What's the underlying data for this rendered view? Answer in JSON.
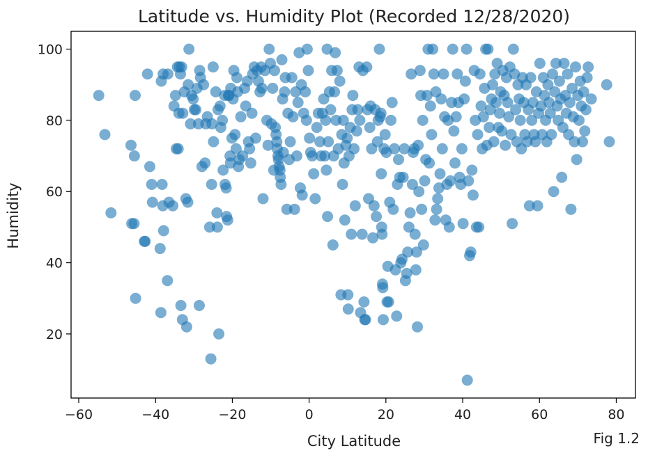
{
  "chart_data": {
    "type": "scatter",
    "title": "Latitude vs. Humidity Plot (Recorded 12/28/2020)",
    "xlabel": "City Latitude",
    "ylabel": "Humidity",
    "xlim": [
      -62,
      85
    ],
    "ylim": [
      2,
      105
    ],
    "xticks": [
      -60,
      -40,
      -20,
      0,
      20,
      40,
      60,
      80
    ],
    "yticks": [
      20,
      40,
      60,
      80,
      100
    ],
    "grid": false,
    "color": "#1f77b4",
    "annotation": "Fig 1.2",
    "points": [
      [
        -54.8,
        87
      ],
      [
        -53.2,
        76
      ],
      [
        -51.6,
        54
      ],
      [
        -46.4,
        73
      ],
      [
        -46.2,
        51
      ],
      [
        -45.6,
        51
      ],
      [
        -45.5,
        70
      ],
      [
        -45.3,
        87
      ],
      [
        -45.2,
        30
      ],
      [
        -42.9,
        46
      ],
      [
        -42.7,
        46
      ],
      [
        -42.1,
        93
      ],
      [
        -41.5,
        67
      ],
      [
        -41.0,
        62
      ],
      [
        -40.8,
        57
      ],
      [
        -38.8,
        44
      ],
      [
        -38.6,
        26
      ],
      [
        -38.5,
        91
      ],
      [
        -38.3,
        62
      ],
      [
        -38.1,
        56
      ],
      [
        -38.0,
        93
      ],
      [
        -37.9,
        49
      ],
      [
        -36.9,
        35
      ],
      [
        -36.8,
        93
      ],
      [
        -36.5,
        57
      ],
      [
        -35.5,
        56
      ],
      [
        -35.2,
        84
      ],
      [
        -34.8,
        87
      ],
      [
        -34.6,
        72
      ],
      [
        -34.3,
        95
      ],
      [
        -34.1,
        72
      ],
      [
        -33.9,
        82
      ],
      [
        -33.8,
        95
      ],
      [
        -33.5,
        93
      ],
      [
        -33.4,
        28
      ],
      [
        -33.2,
        95
      ],
      [
        -33.0,
        24
      ],
      [
        -32.9,
        82
      ],
      [
        -32.5,
        88
      ],
      [
        -32.1,
        58
      ],
      [
        -31.9,
        22
      ],
      [
        -31.6,
        57
      ],
      [
        -31.5,
        90
      ],
      [
        -31.3,
        100
      ],
      [
        -30.9,
        79
      ],
      [
        -30.6,
        87
      ],
      [
        -30.2,
        86
      ],
      [
        -29.9,
        83
      ],
      [
        -29.5,
        83
      ],
      [
        -29.2,
        89
      ],
      [
        -28.8,
        79
      ],
      [
        -28.6,
        28
      ],
      [
        -28.5,
        94
      ],
      [
        -28.3,
        92
      ],
      [
        -27.9,
        67
      ],
      [
        -27.5,
        90
      ],
      [
        -27.1,
        68
      ],
      [
        -26.9,
        79
      ],
      [
        -26.5,
        81
      ],
      [
        -25.9,
        50
      ],
      [
        -25.6,
        13
      ],
      [
        -25.4,
        62
      ],
      [
        -25.3,
        79
      ],
      [
        -25.0,
        95
      ],
      [
        -24.9,
        74
      ],
      [
        -24.3,
        88
      ],
      [
        -24.0,
        54
      ],
      [
        -23.9,
        50
      ],
      [
        -23.7,
        83
      ],
      [
        -23.5,
        20
      ],
      [
        -23.2,
        84
      ],
      [
        -23.0,
        78
      ],
      [
        -22.6,
        80
      ],
      [
        -22.4,
        66
      ],
      [
        -22.0,
        87
      ],
      [
        -21.9,
        62
      ],
      [
        -21.6,
        61
      ],
      [
        -21.5,
        53
      ],
      [
        -21.2,
        52
      ],
      [
        -21.0,
        87
      ],
      [
        -20.9,
        87
      ],
      [
        -20.6,
        70
      ],
      [
        -20.5,
        68
      ],
      [
        -20.4,
        89
      ],
      [
        -20.1,
        75
      ],
      [
        -19.8,
        86
      ],
      [
        -19.6,
        94
      ],
      [
        -19.3,
        76
      ],
      [
        -19.0,
        72
      ],
      [
        -18.8,
        92
      ],
      [
        -18.6,
        88
      ],
      [
        -18.4,
        67
      ],
      [
        -18.2,
        69
      ],
      [
        -17.8,
        81
      ],
      [
        -17.3,
        70
      ],
      [
        -16.8,
        89
      ],
      [
        -16.5,
        84
      ],
      [
        -16.1,
        91
      ],
      [
        -15.8,
        74
      ],
      [
        -15.5,
        72
      ],
      [
        -15.2,
        68
      ],
      [
        -14.9,
        82
      ],
      [
        -14.7,
        93
      ],
      [
        -14.3,
        95
      ],
      [
        -13.9,
        75
      ],
      [
        -13.5,
        94
      ],
      [
        -13.2,
        91
      ],
      [
        -12.8,
        88
      ],
      [
        -12.5,
        95
      ],
      [
        -12.3,
        89
      ],
      [
        -12.0,
        58
      ],
      [
        -11.5,
        94
      ],
      [
        -11.0,
        80
      ],
      [
        -10.7,
        73
      ],
      [
        -10.4,
        100
      ],
      [
        -10.1,
        96
      ],
      [
        -9.8,
        79
      ],
      [
        -9.5,
        89
      ],
      [
        -9.2,
        66
      ],
      [
        -9.0,
        94
      ],
      [
        -8.8,
        78
      ],
      [
        -8.6,
        76
      ],
      [
        -8.4,
        74
      ],
      [
        -8.3,
        72
      ],
      [
        -8.1,
        70
      ],
      [
        -8.0,
        69
      ],
      [
        -7.8,
        67
      ],
      [
        -7.6,
        66
      ],
      [
        -7.5,
        64
      ],
      [
        -7.3,
        62
      ],
      [
        -7.1,
        97
      ],
      [
        -6.9,
        86
      ],
      [
        -6.7,
        71
      ],
      [
        -6.4,
        88
      ],
      [
        -6.2,
        92
      ],
      [
        -5.8,
        55
      ],
      [
        -5.5,
        82
      ],
      [
        -5.2,
        69
      ],
      [
        -4.9,
        74
      ],
      [
        -4.5,
        92
      ],
      [
        -4.2,
        81
      ],
      [
        -3.8,
        55
      ],
      [
        -3.5,
        88
      ],
      [
        -3.2,
        70
      ],
      [
        -2.9,
        85
      ],
      [
        -2.6,
        99
      ],
      [
        -2.3,
        61
      ],
      [
        -2.0,
        90
      ],
      [
        -1.8,
        59
      ],
      [
        -1.4,
        82
      ],
      [
        -1.0,
        88
      ],
      [
        -0.7,
        80
      ],
      [
        -0.5,
        100
      ],
      [
        -0.2,
        94
      ],
      [
        0.1,
        75
      ],
      [
        0.4,
        71
      ],
      [
        0.8,
        70
      ],
      [
        1.2,
        65
      ],
      [
        1.6,
        58
      ],
      [
        2.0,
        78
      ],
      [
        2.4,
        82
      ],
      [
        2.8,
        74
      ],
      [
        3.1,
        70
      ],
      [
        3.5,
        82
      ],
      [
        3.8,
        86
      ],
      [
        4.1,
        70
      ],
      [
        4.3,
        80
      ],
      [
        4.5,
        66
      ],
      [
        4.7,
        100
      ],
      [
        4.8,
        53
      ],
      [
        5.0,
        74
      ],
      [
        5.3,
        88
      ],
      [
        5.6,
        83
      ],
      [
        5.9,
        94
      ],
      [
        6.2,
        45
      ],
      [
        6.4,
        70
      ],
      [
        6.6,
        88
      ],
      [
        6.8,
        99
      ],
      [
        7.0,
        80
      ],
      [
        7.3,
        94
      ],
      [
        7.6,
        72
      ],
      [
        8.0,
        91
      ],
      [
        8.3,
        31
      ],
      [
        8.5,
        76
      ],
      [
        8.7,
        62
      ],
      [
        8.9,
        80
      ],
      [
        9.1,
        68
      ],
      [
        9.3,
        52
      ],
      [
        9.6,
        73
      ],
      [
        9.9,
        75
      ],
      [
        10.1,
        31
      ],
      [
        10.2,
        27
      ],
      [
        10.4,
        70
      ],
      [
        10.7,
        78
      ],
      [
        11.0,
        48
      ],
      [
        11.2,
        83
      ],
      [
        11.4,
        87
      ],
      [
        11.7,
        72
      ],
      [
        12.0,
        56
      ],
      [
        12.4,
        77
      ],
      [
        12.7,
        83
      ],
      [
        13.0,
        95
      ],
      [
        13.2,
        80
      ],
      [
        13.4,
        26
      ],
      [
        13.8,
        48
      ],
      [
        14.0,
        94
      ],
      [
        14.3,
        29
      ],
      [
        14.5,
        24
      ],
      [
        14.7,
        24
      ],
      [
        15.0,
        95
      ],
      [
        15.2,
        83
      ],
      [
        15.5,
        58
      ],
      [
        15.8,
        78
      ],
      [
        16.0,
        84
      ],
      [
        16.3,
        72
      ],
      [
        16.6,
        47
      ],
      [
        16.9,
        56
      ],
      [
        17.2,
        83
      ],
      [
        17.5,
        53
      ],
      [
        17.8,
        74
      ],
      [
        18.0,
        80
      ],
      [
        18.3,
        100
      ],
      [
        18.5,
        81
      ],
      [
        18.7,
        82
      ],
      [
        18.8,
        65
      ],
      [
        18.9,
        50
      ],
      [
        19.0,
        48
      ],
      [
        19.1,
        34
      ],
      [
        19.2,
        33
      ],
      [
        19.3,
        24
      ],
      [
        19.5,
        72
      ],
      [
        19.8,
        76
      ],
      [
        20.1,
        71
      ],
      [
        20.3,
        29
      ],
      [
        20.5,
        39
      ],
      [
        20.7,
        29
      ],
      [
        21.0,
        57
      ],
      [
        21.3,
        80
      ],
      [
        21.6,
        85
      ],
      [
        21.9,
        55
      ],
      [
        22.2,
        72
      ],
      [
        22.5,
        38
      ],
      [
        22.8,
        25
      ],
      [
        23.0,
        62
      ],
      [
        23.3,
        69
      ],
      [
        23.6,
        64
      ],
      [
        23.9,
        40
      ],
      [
        24.2,
        41
      ],
      [
        24.5,
        64
      ],
      [
        24.8,
        72
      ],
      [
        25.1,
        35
      ],
      [
        25.4,
        37
      ],
      [
        25.7,
        43
      ],
      [
        26.0,
        50
      ],
      [
        26.3,
        54
      ],
      [
        26.6,
        93
      ],
      [
        26.9,
        62
      ],
      [
        27.1,
        71
      ],
      [
        27.4,
        72
      ],
      [
        27.6,
        48
      ],
      [
        27.8,
        38
      ],
      [
        28.0,
        43
      ],
      [
        28.2,
        22
      ],
      [
        28.4,
        73
      ],
      [
        28.6,
        60
      ],
      [
        28.9,
        94
      ],
      [
        29.1,
        87
      ],
      [
        29.3,
        55
      ],
      [
        29.6,
        80
      ],
      [
        29.8,
        45
      ],
      [
        30.1,
        63
      ],
      [
        30.4,
        69
      ],
      [
        30.7,
        87
      ],
      [
        31.0,
        100
      ],
      [
        31.3,
        68
      ],
      [
        31.6,
        84
      ],
      [
        31.9,
        76
      ],
      [
        32.2,
        100
      ],
      [
        32.5,
        93
      ],
      [
        32.8,
        52
      ],
      [
        33.0,
        88
      ],
      [
        33.2,
        55
      ],
      [
        33.5,
        58
      ],
      [
        33.8,
        61
      ],
      [
        34.1,
        65
      ],
      [
        34.4,
        86
      ],
      [
        34.7,
        72
      ],
      [
        35.0,
        93
      ],
      [
        35.3,
        81
      ],
      [
        35.6,
        52
      ],
      [
        35.9,
        62
      ],
      [
        36.2,
        80
      ],
      [
        36.5,
        50
      ],
      [
        36.8,
        63
      ],
      [
        37.1,
        85
      ],
      [
        37.4,
        100
      ],
      [
        37.7,
        77
      ],
      [
        38.0,
        68
      ],
      [
        38.3,
        81
      ],
      [
        38.6,
        93
      ],
      [
        38.9,
        85
      ],
      [
        39.2,
        64
      ],
      [
        39.5,
        62
      ],
      [
        39.8,
        72
      ],
      [
        40.1,
        51
      ],
      [
        40.4,
        86
      ],
      [
        40.7,
        91
      ],
      [
        41.0,
        100
      ],
      [
        41.2,
        7
      ],
      [
        41.5,
        63
      ],
      [
        41.8,
        42
      ],
      [
        42.1,
        43
      ],
      [
        42.4,
        66
      ],
      [
        42.7,
        59
      ],
      [
        43.0,
        94
      ],
      [
        43.3,
        80
      ],
      [
        43.6,
        50
      ],
      [
        43.9,
        76
      ],
      [
        44.2,
        50
      ],
      [
        44.5,
        93
      ],
      [
        44.8,
        84
      ],
      [
        45.1,
        72
      ],
      [
        45.4,
        81
      ],
      [
        45.7,
        89
      ],
      [
        46.0,
        100
      ],
      [
        46.3,
        73
      ],
      [
        46.6,
        100
      ],
      [
        46.9,
        78
      ],
      [
        47.2,
        83
      ],
      [
        47.5,
        86
      ],
      [
        47.8,
        90
      ],
      [
        48.1,
        74
      ],
      [
        48.4,
        93
      ],
      [
        48.7,
        85
      ],
      [
        49.0,
        96
      ],
      [
        49.3,
        78
      ],
      [
        49.6,
        82
      ],
      [
        49.9,
        88
      ],
      [
        50.2,
        77
      ],
      [
        50.5,
        94
      ],
      [
        50.8,
        87
      ],
      [
        51.1,
        73
      ],
      [
        51.4,
        92
      ],
      [
        51.7,
        85
      ],
      [
        52.0,
        81
      ],
      [
        52.3,
        95
      ],
      [
        52.6,
        76
      ],
      [
        52.9,
        51
      ],
      [
        53.2,
        100
      ],
      [
        53.5,
        93
      ],
      [
        53.8,
        83
      ],
      [
        54.1,
        74
      ],
      [
        54.4,
        90
      ],
      [
        54.7,
        86
      ],
      [
        55.0,
        80
      ],
      [
        55.3,
        72
      ],
      [
        55.6,
        92
      ],
      [
        55.9,
        85
      ],
      [
        56.2,
        76
      ],
      [
        56.5,
        90
      ],
      [
        56.8,
        74
      ],
      [
        57.1,
        83
      ],
      [
        57.4,
        56
      ],
      [
        57.7,
        92
      ],
      [
        58.0,
        80
      ],
      [
        58.3,
        85
      ],
      [
        58.6,
        76
      ],
      [
        58.9,
        74
      ],
      [
        59.2,
        88
      ],
      [
        59.5,
        56
      ],
      [
        59.8,
        82
      ],
      [
        60.1,
        96
      ],
      [
        60.4,
        84
      ],
      [
        60.7,
        76
      ],
      [
        61.0,
        92
      ],
      [
        61.3,
        87
      ],
      [
        61.6,
        80
      ],
      [
        61.9,
        74
      ],
      [
        62.2,
        90
      ],
      [
        62.5,
        85
      ],
      [
        62.8,
        82
      ],
      [
        63.1,
        76
      ],
      [
        63.4,
        93
      ],
      [
        63.7,
        60
      ],
      [
        64.0,
        88
      ],
      [
        64.3,
        96
      ],
      [
        64.6,
        84
      ],
      [
        64.9,
        80
      ],
      [
        65.2,
        91
      ],
      [
        65.5,
        86
      ],
      [
        65.8,
        64
      ],
      [
        66.1,
        78
      ],
      [
        66.4,
        96
      ],
      [
        66.7,
        87
      ],
      [
        67.0,
        82
      ],
      [
        67.3,
        93
      ],
      [
        67.6,
        76
      ],
      [
        67.9,
        85
      ],
      [
        68.2,
        55
      ],
      [
        68.5,
        89
      ],
      [
        68.8,
        81
      ],
      [
        69.1,
        74
      ],
      [
        69.4,
        95
      ],
      [
        69.7,
        69
      ],
      [
        70.0,
        87
      ],
      [
        70.3,
        80
      ],
      [
        70.6,
        91
      ],
      [
        70.9,
        84
      ],
      [
        71.2,
        74
      ],
      [
        71.5,
        88
      ],
      [
        71.8,
        77
      ],
      [
        72.1,
        83
      ],
      [
        72.4,
        92
      ],
      [
        72.7,
        95
      ],
      [
        73.5,
        86
      ],
      [
        77.5,
        90
      ],
      [
        78.2,
        74
      ]
    ]
  }
}
